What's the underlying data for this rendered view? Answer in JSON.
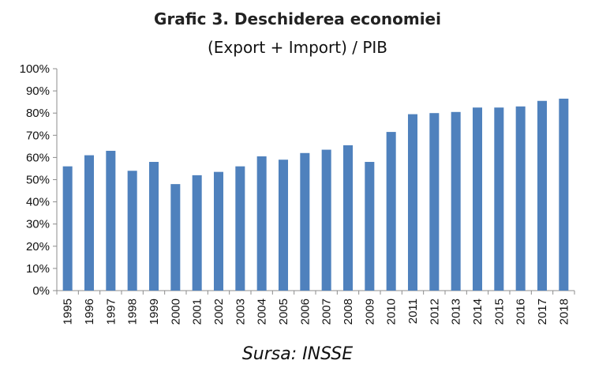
{
  "chart_data": {
    "type": "bar",
    "title": "Grafic 3. Deschiderea economiei",
    "subtitle": "(Export + Import) / PIB",
    "categories": [
      "1995",
      "1996",
      "1997",
      "1998",
      "1999",
      "2000",
      "2001",
      "2002",
      "2003",
      "2004",
      "2005",
      "2006",
      "2007",
      "2008",
      "2009",
      "2010",
      "2011",
      "2012",
      "2013",
      "2014",
      "2015",
      "2016",
      "2017",
      "2018"
    ],
    "values": [
      56,
      61,
      63,
      54,
      58,
      48,
      52,
      53.5,
      56,
      60.5,
      59,
      62,
      63.5,
      65.5,
      58,
      71.5,
      79.5,
      80,
      80.5,
      82.5,
      82.5,
      83,
      85.5,
      86.5
    ],
    "ylim": [
      0,
      100
    ],
    "yticks": [
      "0%",
      "10%",
      "20%",
      "30%",
      "40%",
      "50%",
      "60%",
      "70%",
      "80%",
      "90%",
      "100%"
    ],
    "grid": false,
    "bar_color": "#4F81BD",
    "source": "Sursa: INSSE"
  }
}
